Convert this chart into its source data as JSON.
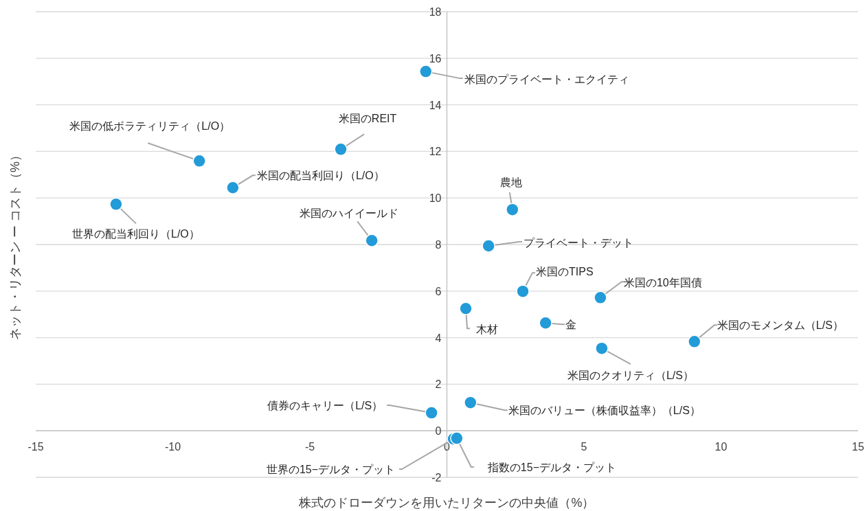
{
  "chart_data": {
    "type": "scatter",
    "xlabel": "株式のドローダウンを用いたリターンの中央値（%）",
    "ylabel": "ネット・リターン ー コスト（%）",
    "x": [
      -0.77,
      -9.03,
      -3.87,
      -7.81,
      -12.07,
      -2.74,
      2.39,
      1.52,
      2.77,
      5.6,
      0.69,
      3.6,
      9.03,
      5.65,
      -0.56,
      0.86,
      0.24,
      0.36
    ],
    "series": [
      {
        "color": "#229bd8",
        "values": [
          15.43,
          11.59,
          12.09,
          10.44,
          9.73,
          8.17,
          9.5,
          7.94,
          5.99,
          5.72,
          5.25,
          4.63,
          3.83,
          3.54,
          0.77,
          1.21,
          -0.35,
          -0.32
        ]
      }
    ],
    "marker": "circle",
    "xlim": [
      -15,
      15
    ],
    "ylim": [
      -2,
      18
    ],
    "xticks": [
      -15,
      -10,
      -5,
      0,
      5,
      10,
      15
    ],
    "yticks": [
      -2,
      0,
      2,
      4,
      6,
      8,
      10,
      12,
      14,
      16,
      18
    ],
    "grid": "y",
    "annotations": [
      {
        "text": "米国のプライベート・エクイティ",
        "x": -0.77,
        "y": 15.43
      },
      {
        "text": "米国の低ボラティリティ（L/O）",
        "x": -9.03,
        "y": 11.59
      },
      {
        "text": "米国のREIT",
        "x": -3.87,
        "y": 12.09
      },
      {
        "text": "米国の配当利回り（L/O）",
        "x": -7.81,
        "y": 10.44
      },
      {
        "text": "世界の配当利回り（L/O）",
        "x": -12.07,
        "y": 9.73
      },
      {
        "text": "米国のハイイールド",
        "x": -2.74,
        "y": 8.17
      },
      {
        "text": "農地",
        "x": 2.39,
        "y": 9.5
      },
      {
        "text": "プライベート・デット",
        "x": 1.52,
        "y": 7.94
      },
      {
        "text": "米国のTIPS",
        "x": 2.77,
        "y": 5.99
      },
      {
        "text": "米国の10年国債",
        "x": 5.6,
        "y": 5.72
      },
      {
        "text": "木材",
        "x": 0.69,
        "y": 5.25
      },
      {
        "text": "金",
        "x": 3.6,
        "y": 4.63
      },
      {
        "text": "米国のモメンタム（L/S）",
        "x": 9.03,
        "y": 3.83
      },
      {
        "text": "米国のクオリティ（L/S）",
        "x": 5.65,
        "y": 3.54
      },
      {
        "text": "債券のキャリー（L/S）",
        "x": -0.56,
        "y": 0.77
      },
      {
        "text": "米国のバリュー（株価収益率）（L/S）",
        "x": 0.86,
        "y": 1.21
      },
      {
        "text": "世界の15−デルタ・プット",
        "x": 0.24,
        "y": -0.35
      },
      {
        "text": "指数の15−デルタ・プット",
        "x": 0.36,
        "y": -0.32
      }
    ]
  }
}
